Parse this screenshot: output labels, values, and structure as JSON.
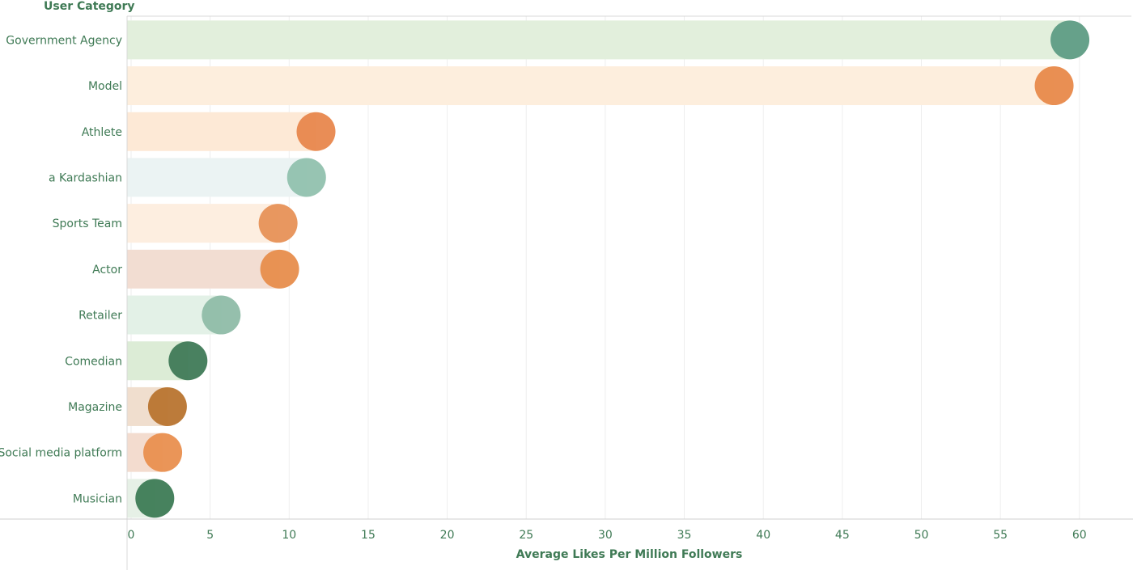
{
  "chart_data": {
    "type": "bar",
    "title": "",
    "ylabel": "User Category",
    "xlabel": "Average Likes Per Million Followers",
    "xlim": [
      0,
      62
    ],
    "xticks": [
      0,
      5,
      10,
      15,
      20,
      25,
      30,
      35,
      40,
      45,
      50,
      55,
      60
    ],
    "grid": true,
    "categories": [
      "Government Agency",
      "Model",
      "Athlete",
      "a Kardashian",
      "Sports Team",
      "Actor",
      "Retailer",
      "Comedian",
      "Magazine",
      "Social media platform",
      "Musician"
    ],
    "values": [
      59.4,
      58.4,
      11.7,
      11.1,
      9.3,
      9.4,
      5.7,
      3.6,
      2.3,
      2.0,
      1.5
    ],
    "bar_colors": [
      "#e2efdc",
      "#fdeedd",
      "#fde9d6",
      "#ebf3f3",
      "#fdeee0",
      "#f2ddd2",
      "#e3f1e7",
      "#dcecd6",
      "#f0dece",
      "#f3dccf",
      "#e6f0e6"
    ],
    "dot_colors": [
      "#5e9c84",
      "#e8894a",
      "#e8874d",
      "#91c1ae",
      "#e79157",
      "#e78d4c",
      "#8fbca8",
      "#3f7a57",
      "#b8742f",
      "#e98f4f",
      "#3d7b55"
    ]
  }
}
